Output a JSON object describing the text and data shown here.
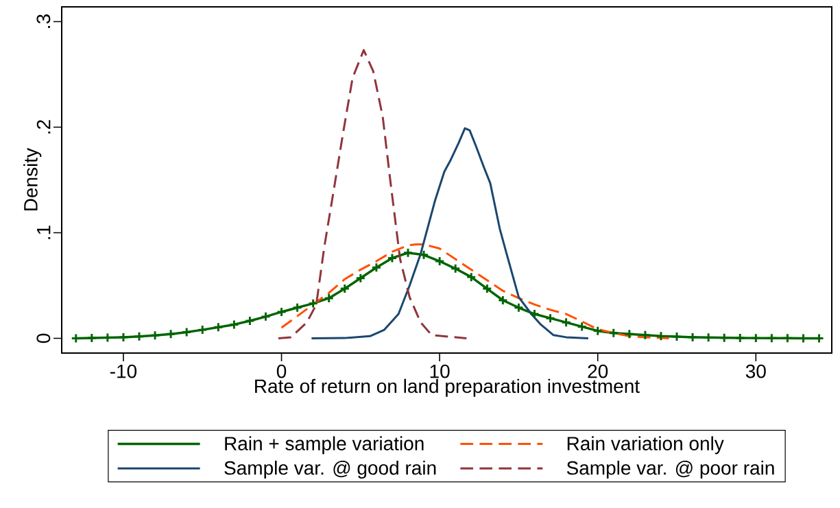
{
  "chart_data": {
    "type": "line",
    "xlabel": "Rate of return on land preparation investment",
    "ylabel": "Density",
    "xlim": [
      -13.9,
      34.8
    ],
    "ylim": [
      -0.014,
      0.314
    ],
    "xticks": [
      -10,
      0,
      10,
      20,
      30
    ],
    "yticks": [
      {
        "value": 0,
        "label": "0"
      },
      {
        "value": 0.1,
        "label": ".1"
      },
      {
        "value": 0.2,
        "label": ".2"
      },
      {
        "value": 0.3,
        "label": ".3"
      }
    ],
    "grid": false,
    "legend": "bottom",
    "series": [
      {
        "name": "Rain + sample variation",
        "color": "#006400",
        "marker": "cross",
        "line_style": "solid",
        "x": [
          -13,
          -12,
          -11,
          -10,
          -9,
          -8,
          -7,
          -6,
          -5,
          -4,
          -3,
          -2,
          -1,
          0,
          1,
          2,
          3,
          4,
          5,
          6,
          7,
          8,
          9,
          10,
          11,
          12,
          13,
          14,
          15,
          16,
          17,
          18,
          19,
          20,
          21,
          22,
          23,
          24,
          25,
          26,
          27,
          28,
          29,
          30,
          31,
          32,
          33,
          34
        ],
        "values": [
          0,
          0.0003,
          0.0006,
          0.001,
          0.0017,
          0.0027,
          0.004,
          0.0058,
          0.008,
          0.0105,
          0.013,
          0.0165,
          0.0205,
          0.025,
          0.029,
          0.033,
          0.038,
          0.047,
          0.057,
          0.067,
          0.076,
          0.081,
          0.079,
          0.073,
          0.066,
          0.058,
          0.047,
          0.036,
          0.029,
          0.023,
          0.019,
          0.015,
          0.011,
          0.007,
          0.005,
          0.004,
          0.003,
          0.002,
          0.0015,
          0.001,
          0.0007,
          0.0005,
          0.0003,
          0.0002,
          0.0001,
          0.0001,
          0,
          0
        ]
      },
      {
        "name": "Rain variation only",
        "color": "#ff5000",
        "marker": "none",
        "line_style": "dashed",
        "x": [
          0,
          1,
          2,
          3,
          4,
          5,
          6,
          7,
          8,
          8.5,
          9,
          10,
          11,
          12,
          13,
          14,
          15,
          16,
          17,
          18,
          19,
          20,
          21,
          22,
          23,
          24,
          24.5
        ],
        "values": [
          0.01,
          0.021,
          0.032,
          0.043,
          0.056,
          0.065,
          0.073,
          0.082,
          0.088,
          0.089,
          0.089,
          0.085,
          0.075,
          0.065,
          0.055,
          0.045,
          0.038,
          0.032,
          0.027,
          0.023,
          0.016,
          0.0085,
          0.005,
          0.002,
          0.001,
          0.0005,
          0
        ]
      },
      {
        "name": "Sample var. @ good rain",
        "color": "#1a476f",
        "marker": "none",
        "line_style": "solid",
        "x": [
          1.9,
          4,
          5.6,
          6.5,
          7.4,
          8.1,
          8.8,
          9.7,
          10.3,
          10.7,
          11.2,
          11.6,
          11.9,
          12.3,
          12.8,
          13.2,
          13.8,
          14.2,
          15,
          15.8,
          16.4,
          17.2,
          18,
          19.4
        ],
        "values": [
          0,
          0.0002,
          0.002,
          0.008,
          0.023,
          0.05,
          0.08,
          0.13,
          0.158,
          0.169,
          0.185,
          0.199,
          0.197,
          0.182,
          0.162,
          0.147,
          0.104,
          0.082,
          0.039,
          0.023,
          0.013,
          0.003,
          0.001,
          0
        ]
      },
      {
        "name": "Sample var. @ poor rain",
        "color": "#90353b",
        "marker": "none",
        "line_style": "dashed",
        "x": [
          -0.2,
          0.6,
          1.6,
          2.2,
          2.7,
          3.3,
          3.9,
          4.5,
          5.2,
          5.8,
          6.4,
          6.9,
          7.5,
          8.1,
          8.8,
          9.5,
          11.7
        ],
        "values": [
          0,
          0.001,
          0.015,
          0.032,
          0.086,
          0.14,
          0.195,
          0.247,
          0.273,
          0.253,
          0.21,
          0.147,
          0.075,
          0.039,
          0.015,
          0.003,
          0
        ]
      }
    ]
  }
}
